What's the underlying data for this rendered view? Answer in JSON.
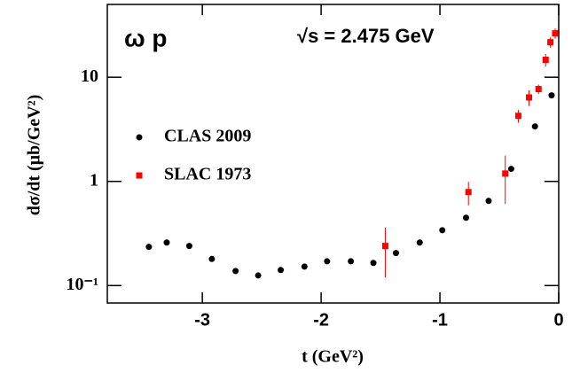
{
  "chart_data": {
    "type": "scatter",
    "title": "ω p",
    "annotation": "√s = 2.475 GeV",
    "x_label": "t (GeV²)",
    "y_label": "dσ/dt (μb/GeV²)",
    "xlim": [
      -3.8,
      0
    ],
    "xticks": [
      -3,
      -2,
      -1,
      0
    ],
    "ylim": [
      0.068,
      50
    ],
    "yscale": "log",
    "yticks": [
      {
        "value": 0.1,
        "label": "10⁻¹"
      },
      1,
      10
    ],
    "legend": "left",
    "series": [
      {
        "name": "CLAS 2009",
        "color": "#000000",
        "marker": "circle",
        "x": [
          -3.45,
          -3.3,
          -3.11,
          -2.92,
          -2.72,
          -2.53,
          -2.34,
          -2.14,
          -1.95,
          -1.75,
          -1.56,
          -1.37,
          -1.17,
          -0.98,
          -0.78,
          -0.59,
          -0.4,
          -0.2,
          -0.06
        ],
        "values": [
          0.235,
          0.259,
          0.24,
          0.18,
          0.138,
          0.125,
          0.141,
          0.152,
          0.171,
          0.171,
          0.165,
          0.205,
          0.259,
          0.34,
          0.448,
          0.65,
          1.32,
          3.37,
          6.7
        ]
      },
      {
        "name": "SLAC 1973",
        "color": "#ff0000",
        "marker": "square",
        "x": [
          -1.46,
          -0.76,
          -0.45,
          -0.34,
          -0.25,
          -0.17,
          -0.11,
          -0.07,
          -0.03
        ],
        "values": [
          0.24,
          0.79,
          1.19,
          4.26,
          6.4,
          7.7,
          14.7,
          21.7,
          26.4
        ],
        "errors": [
          0.12,
          0.2,
          0.58,
          0.6,
          1.1,
          0.8,
          2,
          2.5,
          3
        ]
      }
    ]
  }
}
